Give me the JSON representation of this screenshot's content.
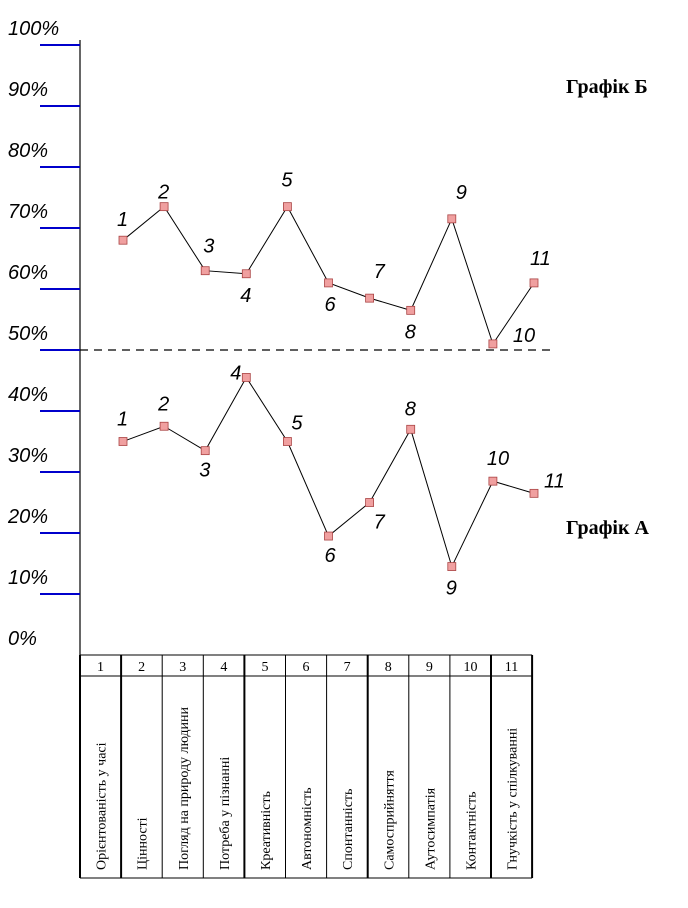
{
  "chart_data": {
    "type": "line",
    "ylim": [
      0,
      100
    ],
    "y_ticks": [
      "0%",
      "10%",
      "20%",
      "30%",
      "40%",
      "50%",
      "60%",
      "70%",
      "80%",
      "90%",
      "100%"
    ],
    "tick_color": "#0000cc",
    "marker_color": "#f0a0a0",
    "threshold": 50,
    "categories": [
      {
        "num": "1",
        "name": "Орієнтованість у часі"
      },
      {
        "num": "2",
        "name": "Цінності"
      },
      {
        "num": "3",
        "name": "Погляд на природу людини"
      },
      {
        "num": "4",
        "name": "Потреба у пізнанні"
      },
      {
        "num": "5",
        "name": "Креативність"
      },
      {
        "num": "6",
        "name": "Автономність"
      },
      {
        "num": "7",
        "name": "Спонтанність"
      },
      {
        "num": "8",
        "name": "Самосприйняття"
      },
      {
        "num": "9",
        "name": "Аутосимпатія"
      },
      {
        "num": "10",
        "name": "Контактність"
      },
      {
        "num": "11",
        "name": "Гнучкість у спілкуванні"
      }
    ],
    "series": [
      {
        "name": "Графік Б",
        "point_labels": [
          "1",
          "2",
          "3",
          "4",
          "5",
          "6",
          "7",
          "8",
          "9",
          "10",
          "11"
        ],
        "values": [
          68,
          73.5,
          63,
          62.5,
          73.5,
          61,
          58.5,
          56.5,
          71.5,
          51,
          61
        ]
      },
      {
        "name": "Графік А",
        "point_labels": [
          "1",
          "2",
          "3",
          "4",
          "5",
          "6",
          "7",
          "8",
          "9",
          "10",
          "11"
        ],
        "values": [
          35,
          37.5,
          33.5,
          45.5,
          35,
          19.5,
          25,
          37,
          14.5,
          28.5,
          26.5
        ]
      }
    ]
  }
}
